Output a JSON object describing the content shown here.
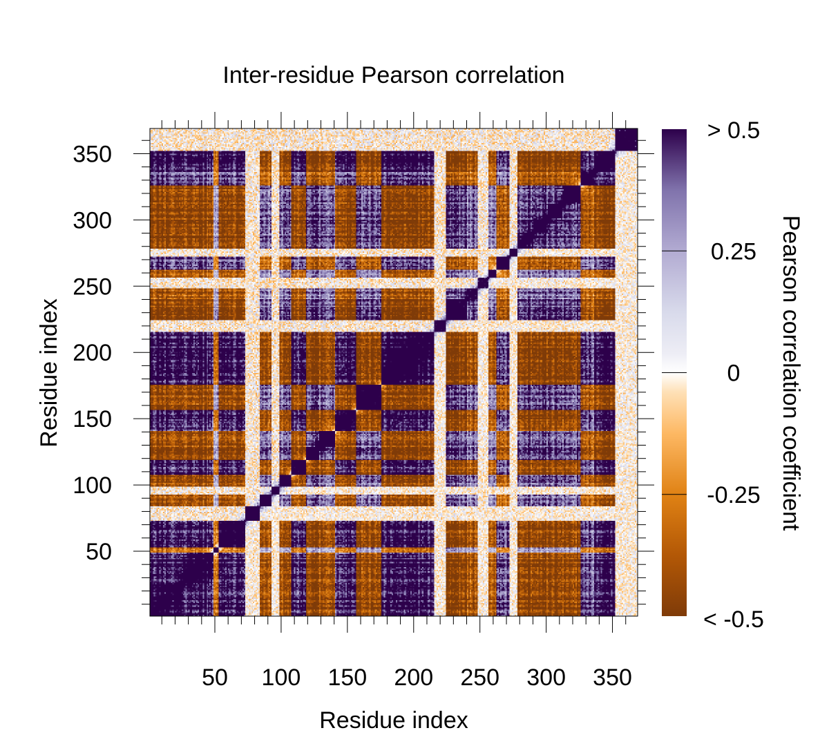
{
  "chart_data": {
    "type": "heatmap",
    "title": "Inter-residue Pearson correlation",
    "xlabel": "Residue index",
    "ylabel": "Residue index",
    "xlim": [
      1,
      369
    ],
    "ylim": [
      1,
      369
    ],
    "x_ticks": [
      50,
      100,
      150,
      200,
      250,
      300,
      350
    ],
    "y_ticks": [
      50,
      100,
      150,
      200,
      250,
      300,
      350
    ],
    "x_tick_labels": [
      "50",
      "100",
      "150",
      "200",
      "250",
      "300",
      "350"
    ],
    "y_tick_labels": [
      "50",
      "100",
      "150",
      "200",
      "250",
      "300",
      "350"
    ],
    "minor_tick_step": 10,
    "grid": false,
    "matrix_size": 369,
    "diagonal_value": 1.0,
    "domains": [
      {
        "start": 1,
        "end": 25,
        "sign": 1,
        "strength": 0.85
      },
      {
        "start": 26,
        "end": 48,
        "sign": 1,
        "strength": 0.8
      },
      {
        "start": 49,
        "end": 52,
        "sign": -1,
        "strength": 0.35
      },
      {
        "start": 53,
        "end": 72,
        "sign": 1,
        "strength": 0.85
      },
      {
        "start": 73,
        "end": 83,
        "sign": 0,
        "strength": 0.2
      },
      {
        "start": 84,
        "end": 92,
        "sign": -1,
        "strength": 0.5
      },
      {
        "start": 93,
        "end": 98,
        "sign": 0,
        "strength": 0.3
      },
      {
        "start": 99,
        "end": 107,
        "sign": -1,
        "strength": 0.55
      },
      {
        "start": 108,
        "end": 118,
        "sign": 1,
        "strength": 0.75
      },
      {
        "start": 119,
        "end": 128,
        "sign": -1,
        "strength": 0.7
      },
      {
        "start": 129,
        "end": 140,
        "sign": -1,
        "strength": 0.55
      },
      {
        "start": 141,
        "end": 156,
        "sign": 1,
        "strength": 0.9
      },
      {
        "start": 157,
        "end": 175,
        "sign": -1,
        "strength": 0.6
      },
      {
        "start": 176,
        "end": 215,
        "sign": 1,
        "strength": 0.9
      },
      {
        "start": 216,
        "end": 224,
        "sign": 0,
        "strength": 0.3
      },
      {
        "start": 225,
        "end": 240,
        "sign": -1,
        "strength": 0.7
      },
      {
        "start": 241,
        "end": 248,
        "sign": -1,
        "strength": 0.55
      },
      {
        "start": 249,
        "end": 256,
        "sign": 0,
        "strength": 0.3
      },
      {
        "start": 257,
        "end": 262,
        "sign": -1,
        "strength": 0.45
      },
      {
        "start": 263,
        "end": 272,
        "sign": 1,
        "strength": 0.6
      },
      {
        "start": 273,
        "end": 278,
        "sign": 0,
        "strength": 0.25
      },
      {
        "start": 279,
        "end": 290,
        "sign": -1,
        "strength": 0.8
      },
      {
        "start": 291,
        "end": 301,
        "sign": -1,
        "strength": 0.7
      },
      {
        "start": 302,
        "end": 312,
        "sign": -1,
        "strength": 0.75
      },
      {
        "start": 313,
        "end": 326,
        "sign": -1,
        "strength": 0.65
      },
      {
        "start": 327,
        "end": 336,
        "sign": 1,
        "strength": 0.5
      },
      {
        "start": 337,
        "end": 352,
        "sign": 1,
        "strength": 0.95
      },
      {
        "start": 353,
        "end": 369,
        "sign": 0,
        "strength": 0.25
      }
    ],
    "colorbar": {
      "label": "Pearson correlation coefficient",
      "ticks": [
        "> 0.5",
        "0.25",
        "0",
        "-0.25",
        "< -0.5"
      ],
      "values": [
        0.5,
        0.25,
        0,
        -0.25,
        -0.5
      ],
      "stops": [
        {
          "value": -0.5,
          "color": "#7f3b08"
        },
        {
          "value": -0.375,
          "color": "#b35806"
        },
        {
          "value": -0.25,
          "color": "#e08214"
        },
        {
          "value": -0.125,
          "color": "#fdb863"
        },
        {
          "value": -0.04,
          "color": "#fee0b6"
        },
        {
          "value": 0,
          "color": "#ffffff"
        },
        {
          "value": 0.04,
          "color": "#ededf5"
        },
        {
          "value": 0.125,
          "color": "#d8daeb"
        },
        {
          "value": 0.25,
          "color": "#b2abd2"
        },
        {
          "value": 0.375,
          "color": "#8073ac"
        },
        {
          "value": 0.5,
          "color": "#2d004b"
        }
      ]
    }
  }
}
